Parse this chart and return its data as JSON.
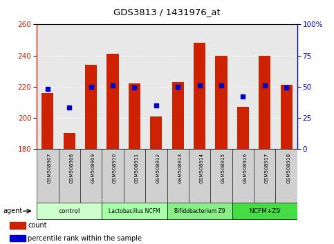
{
  "title": "GDS3813 / 1431976_at",
  "samples": [
    "GSM508907",
    "GSM508908",
    "GSM508909",
    "GSM508910",
    "GSM508911",
    "GSM508912",
    "GSM508913",
    "GSM508914",
    "GSM508915",
    "GSM508916",
    "GSM508917",
    "GSM508918"
  ],
  "count_values": [
    216,
    190,
    234,
    241,
    222,
    201,
    223,
    248,
    240,
    207,
    240,
    221
  ],
  "percentile_values": [
    48,
    33,
    50,
    51,
    49,
    35,
    50,
    51,
    51,
    42,
    51,
    49
  ],
  "ylim_left": [
    180,
    260
  ],
  "ylim_right": [
    0,
    100
  ],
  "yticks_left": [
    180,
    200,
    220,
    240,
    260
  ],
  "yticks_right": [
    0,
    25,
    50,
    75,
    100
  ],
  "ytick_labels_right": [
    "0",
    "25",
    "50",
    "75",
    "100%"
  ],
  "bar_color": "#cc2200",
  "dot_color": "#0000cc",
  "bar_bottom": 180,
  "groups": [
    {
      "label": "control",
      "start": 0,
      "end": 3,
      "color": "#ccffcc"
    },
    {
      "label": "Lactobacillus NCFM",
      "start": 3,
      "end": 6,
      "color": "#aaffaa"
    },
    {
      "label": "Bifidobacterium Z9",
      "start": 6,
      "end": 9,
      "color": "#88ee88"
    },
    {
      "label": "NCFM+Z9",
      "start": 9,
      "end": 12,
      "color": "#44dd44"
    }
  ],
  "agent_label": "agent",
  "tick_label_color_left": "#cc2200",
  "tick_label_color_right": "#0000cc",
  "legend_count_color": "#cc2200",
  "legend_percentile_color": "#0000cc",
  "legend_count_label": "count",
  "legend_percentile_label": "percentile rank within the sample",
  "grid_color": "#888888",
  "bar_width": 0.55,
  "bg_color": "#e8e8e8"
}
